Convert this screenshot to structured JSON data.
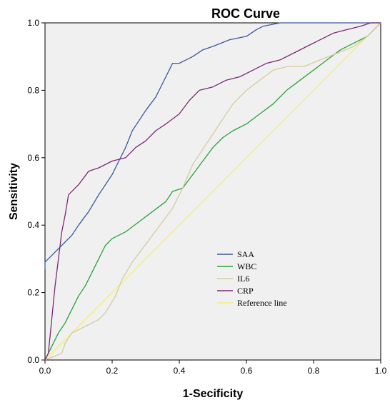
{
  "chart_data": {
    "type": "line",
    "title": "ROC Curve",
    "xlabel": "1-Secificity",
    "ylabel": "Sensitivity",
    "xlim": [
      0,
      1
    ],
    "ylim": [
      0,
      1
    ],
    "xticks": [
      "0.0",
      "0.2",
      "0.4",
      "0.6",
      "0.8",
      "1.0"
    ],
    "yticks": [
      "0.0",
      "0.2",
      "0.4",
      "0.6",
      "0.8",
      "1.0"
    ],
    "grid": false,
    "legend_position": "lower-center",
    "background_color": "#f0f0f0",
    "series": [
      {
        "name": "SAA",
        "color": "#3b5a9a",
        "points": [
          [
            0,
            0.27
          ],
          [
            0,
            0.29
          ],
          [
            0.02,
            0.31
          ],
          [
            0.05,
            0.34
          ],
          [
            0.08,
            0.37
          ],
          [
            0.1,
            0.4
          ],
          [
            0.13,
            0.44
          ],
          [
            0.16,
            0.49
          ],
          [
            0.18,
            0.52
          ],
          [
            0.2,
            0.55
          ],
          [
            0.22,
            0.59
          ],
          [
            0.24,
            0.63
          ],
          [
            0.26,
            0.68
          ],
          [
            0.3,
            0.74
          ],
          [
            0.33,
            0.78
          ],
          [
            0.35,
            0.82
          ],
          [
            0.37,
            0.86
          ],
          [
            0.38,
            0.88
          ],
          [
            0.4,
            0.88
          ],
          [
            0.42,
            0.89
          ],
          [
            0.44,
            0.9
          ],
          [
            0.47,
            0.92
          ],
          [
            0.5,
            0.93
          ],
          [
            0.55,
            0.95
          ],
          [
            0.6,
            0.96
          ],
          [
            0.63,
            0.98
          ],
          [
            0.65,
            0.99
          ],
          [
            0.7,
            1.0
          ],
          [
            0.75,
            1.0
          ],
          [
            1.0,
            1.0
          ]
        ]
      },
      {
        "name": "WBC",
        "color": "#2aa13a",
        "points": [
          [
            0,
            0.0
          ],
          [
            0.01,
            0.02
          ],
          [
            0.02,
            0.04
          ],
          [
            0.03,
            0.06
          ],
          [
            0.04,
            0.08
          ],
          [
            0.06,
            0.11
          ],
          [
            0.08,
            0.15
          ],
          [
            0.1,
            0.19
          ],
          [
            0.12,
            0.22
          ],
          [
            0.14,
            0.26
          ],
          [
            0.16,
            0.3
          ],
          [
            0.18,
            0.34
          ],
          [
            0.2,
            0.36
          ],
          [
            0.24,
            0.38
          ],
          [
            0.28,
            0.41
          ],
          [
            0.32,
            0.44
          ],
          [
            0.36,
            0.47
          ],
          [
            0.38,
            0.5
          ],
          [
            0.41,
            0.51
          ],
          [
            0.44,
            0.55
          ],
          [
            0.47,
            0.59
          ],
          [
            0.5,
            0.63
          ],
          [
            0.53,
            0.66
          ],
          [
            0.56,
            0.68
          ],
          [
            0.6,
            0.7
          ],
          [
            0.64,
            0.73
          ],
          [
            0.68,
            0.76
          ],
          [
            0.72,
            0.8
          ],
          [
            0.76,
            0.83
          ],
          [
            0.8,
            0.86
          ],
          [
            0.84,
            0.89
          ],
          [
            0.88,
            0.92
          ],
          [
            0.92,
            0.94
          ],
          [
            0.96,
            0.96
          ],
          [
            0.98,
            0.98
          ],
          [
            1.0,
            1.0
          ]
        ]
      },
      {
        "name": "IL6",
        "color": "#d4cc9e",
        "points": [
          [
            0,
            0.0
          ],
          [
            0.05,
            0.02
          ],
          [
            0.06,
            0.05
          ],
          [
            0.08,
            0.08
          ],
          [
            0.12,
            0.1
          ],
          [
            0.16,
            0.12
          ],
          [
            0.18,
            0.14
          ],
          [
            0.21,
            0.19
          ],
          [
            0.23,
            0.24
          ],
          [
            0.26,
            0.29
          ],
          [
            0.29,
            0.33
          ],
          [
            0.32,
            0.37
          ],
          [
            0.35,
            0.41
          ],
          [
            0.38,
            0.45
          ],
          [
            0.41,
            0.51
          ],
          [
            0.44,
            0.58
          ],
          [
            0.48,
            0.64
          ],
          [
            0.52,
            0.7
          ],
          [
            0.56,
            0.76
          ],
          [
            0.6,
            0.8
          ],
          [
            0.64,
            0.83
          ],
          [
            0.68,
            0.86
          ],
          [
            0.72,
            0.87
          ],
          [
            0.77,
            0.87
          ],
          [
            0.82,
            0.89
          ],
          [
            0.87,
            0.91
          ],
          [
            0.92,
            0.93
          ],
          [
            0.96,
            0.96
          ],
          [
            1.0,
            1.0
          ]
        ]
      },
      {
        "name": "CRP",
        "color": "#7a2a72",
        "points": [
          [
            0,
            0.0
          ],
          [
            0.01,
            0.02
          ],
          [
            0.02,
            0.12
          ],
          [
            0.03,
            0.22
          ],
          [
            0.04,
            0.3
          ],
          [
            0.05,
            0.38
          ],
          [
            0.06,
            0.43
          ],
          [
            0.07,
            0.49
          ],
          [
            0.1,
            0.52
          ],
          [
            0.13,
            0.56
          ],
          [
            0.16,
            0.57
          ],
          [
            0.2,
            0.59
          ],
          [
            0.24,
            0.6
          ],
          [
            0.27,
            0.63
          ],
          [
            0.3,
            0.65
          ],
          [
            0.33,
            0.68
          ],
          [
            0.36,
            0.7
          ],
          [
            0.4,
            0.73
          ],
          [
            0.43,
            0.77
          ],
          [
            0.46,
            0.8
          ],
          [
            0.5,
            0.81
          ],
          [
            0.54,
            0.83
          ],
          [
            0.58,
            0.84
          ],
          [
            0.62,
            0.86
          ],
          [
            0.66,
            0.88
          ],
          [
            0.7,
            0.89
          ],
          [
            0.74,
            0.91
          ],
          [
            0.78,
            0.93
          ],
          [
            0.82,
            0.95
          ],
          [
            0.86,
            0.97
          ],
          [
            0.9,
            0.98
          ],
          [
            0.94,
            0.99
          ],
          [
            0.97,
            1.0
          ],
          [
            1.0,
            1.0
          ]
        ]
      },
      {
        "name": "Reference line",
        "color": "#f2ee7a",
        "points": [
          [
            0,
            0
          ],
          [
            1,
            1
          ]
        ]
      }
    ]
  }
}
